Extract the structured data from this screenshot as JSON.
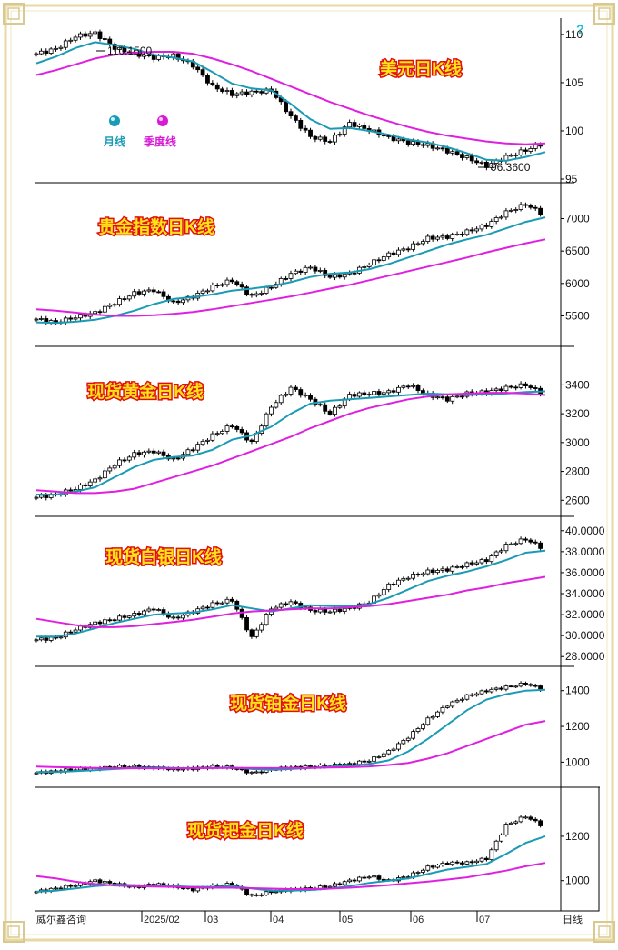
{
  "colors": {
    "candle": "#000000",
    "ma_month": "#1a9bb5",
    "ma_quarter": "#e020e0",
    "title_fill": "#ffe21a",
    "title_stroke": "#e01010",
    "border": "#e8d9a0",
    "legend_month": "#1a9bb5",
    "legend_quarter": "#d81ad8",
    "help": "#19c4d8"
  },
  "legend": {
    "month": "月线",
    "quarter": "季度线",
    "help": "?"
  },
  "footer": {
    "source": "威尔鑫咨询",
    "period": "日线",
    "date_labels": [
      "2025/02",
      "03",
      "04",
      "05",
      "06",
      "07"
    ]
  },
  "chart_data": [
    {
      "type": "line",
      "title": "美元日K线",
      "yticks": [
        "110",
        "105",
        "100",
        "95"
      ],
      "ylim": [
        95,
        111.5
      ],
      "annotations": [
        "110.1500",
        "96.3600"
      ],
      "series": [
        {
          "name": "",
          "values": [
            108.0,
            108.5,
            109.8,
            110.15,
            108.6,
            108.0,
            107.6,
            107.8,
            106.8,
            104.6,
            103.8,
            104.0,
            104.2,
            101.5,
            99.4,
            98.9,
            100.8,
            100.1,
            99.3,
            98.8,
            98.5,
            97.9,
            97.2,
            96.36,
            97.3,
            98.0,
            98.8
          ]
        },
        {
          "name": "月线",
          "values": [
            107.0,
            107.7,
            108.6,
            109.2,
            108.9,
            108.5,
            107.9,
            107.6,
            107.2,
            106.1,
            104.9,
            104.4,
            104.2,
            102.8,
            101.2,
            100.2,
            100.3,
            100.0,
            99.6,
            99.1,
            98.8,
            98.3,
            97.7,
            97.0,
            96.9,
            97.3,
            97.8
          ]
        },
        {
          "name": "季度线",
          "values": [
            105.8,
            106.3,
            106.9,
            107.5,
            107.9,
            108.1,
            108.2,
            108.2,
            108.0,
            107.5,
            106.9,
            106.2,
            105.4,
            104.6,
            103.8,
            103.0,
            102.3,
            101.6,
            101.0,
            100.4,
            99.9,
            99.5,
            99.2,
            98.9,
            98.7,
            98.6,
            98.7
          ]
        }
      ]
    },
    {
      "type": "line",
      "title": "贵金指数日K线",
      "yticks": [
        "7000",
        "6500",
        "6000",
        "5500"
      ],
      "ylim": [
        5100,
        7400
      ],
      "series": [
        {
          "name": "",
          "values": [
            5450,
            5400,
            5480,
            5550,
            5700,
            5850,
            5900,
            5700,
            5800,
            5950,
            6050,
            5800,
            5950,
            6150,
            6250,
            6100,
            6150,
            6300,
            6450,
            6550,
            6700,
            6720,
            6800,
            6900,
            7100,
            7220,
            7050
          ]
        },
        {
          "name": "月线",
          "values": [
            5400,
            5390,
            5410,
            5440,
            5500,
            5580,
            5680,
            5760,
            5790,
            5830,
            5890,
            5920,
            5960,
            6020,
            6100,
            6150,
            6170,
            6220,
            6300,
            6400,
            6500,
            6600,
            6680,
            6750,
            6850,
            6950,
            7020
          ]
        },
        {
          "name": "季度线",
          "values": [
            5600,
            5580,
            5550,
            5520,
            5500,
            5500,
            5510,
            5530,
            5560,
            5600,
            5650,
            5700,
            5750,
            5800,
            5860,
            5920,
            5980,
            6050,
            6120,
            6190,
            6260,
            6330,
            6400,
            6480,
            6550,
            6620,
            6680
          ]
        }
      ]
    },
    {
      "type": "line",
      "title": "现货黄金日K线",
      "yticks": [
        "3400",
        "3200",
        "3000",
        "2800",
        "2600"
      ],
      "ylim": [
        2520,
        3560
      ],
      "series": [
        {
          "name": "",
          "values": [
            2620,
            2640,
            2680,
            2740,
            2850,
            2920,
            2940,
            2880,
            2960,
            3050,
            3120,
            3000,
            3250,
            3380,
            3300,
            3200,
            3330,
            3340,
            3350,
            3400,
            3330,
            3300,
            3340,
            3350,
            3380,
            3400,
            3330
          ]
        },
        {
          "name": "月线",
          "values": [
            2640,
            2640,
            2660,
            2690,
            2760,
            2830,
            2880,
            2900,
            2910,
            2950,
            3020,
            3050,
            3110,
            3200,
            3270,
            3290,
            3300,
            3310,
            3320,
            3330,
            3340,
            3335,
            3330,
            3335,
            3340,
            3350,
            3355
          ]
        },
        {
          "name": "季度线",
          "values": [
            2670,
            2660,
            2650,
            2650,
            2660,
            2680,
            2720,
            2760,
            2800,
            2840,
            2890,
            2940,
            2990,
            3040,
            3100,
            3150,
            3200,
            3240,
            3270,
            3300,
            3320,
            3335,
            3340,
            3345,
            3345,
            3340,
            3330
          ]
        }
      ]
    },
    {
      "type": "line",
      "title": "现货白银日K线",
      "yticks": [
        "40.0000",
        "38.0000",
        "36.0000",
        "34.0000",
        "32.0000",
        "30.0000",
        "28.0000"
      ],
      "ylim": [
        27.5,
        40.5
      ],
      "series": [
        {
          "name": "",
          "values": [
            29.6,
            29.8,
            30.6,
            31.2,
            31.6,
            32.0,
            32.6,
            31.6,
            32.3,
            33.0,
            33.4,
            29.8,
            32.6,
            33.2,
            32.4,
            32.3,
            32.6,
            33.2,
            34.8,
            35.6,
            36.1,
            36.3,
            36.8,
            37.2,
            38.6,
            39.2,
            38.2
          ]
        },
        {
          "name": "月线",
          "values": [
            29.9,
            29.9,
            30.2,
            30.7,
            31.2,
            31.6,
            32.0,
            32.1,
            32.2,
            32.5,
            32.9,
            32.6,
            32.3,
            32.6,
            32.9,
            32.8,
            32.8,
            33.0,
            33.6,
            34.4,
            35.2,
            35.7,
            36.1,
            36.6,
            37.2,
            37.9,
            38.1
          ]
        },
        {
          "name": "季度线",
          "values": [
            31.6,
            31.3,
            31.0,
            30.8,
            30.8,
            30.9,
            31.1,
            31.3,
            31.5,
            31.8,
            32.1,
            32.3,
            32.4,
            32.5,
            32.6,
            32.6,
            32.7,
            32.8,
            33.0,
            33.3,
            33.6,
            33.9,
            34.3,
            34.6,
            35.0,
            35.3,
            35.6
          ]
        }
      ]
    },
    {
      "type": "line",
      "title": "现货铂金日K线",
      "yticks": [
        "1400",
        "1200",
        "1000"
      ],
      "ylim": [
        880,
        1490
      ],
      "series": [
        {
          "name": "",
          "values": [
            940,
            950,
            960,
            965,
            975,
            975,
            970,
            960,
            965,
            975,
            970,
            940,
            960,
            970,
            975,
            980,
            990,
            1010,
            1060,
            1140,
            1240,
            1320,
            1370,
            1400,
            1420,
            1440,
            1400
          ]
        },
        {
          "name": "月线",
          "values": [
            945,
            945,
            950,
            955,
            962,
            968,
            970,
            968,
            966,
            968,
            970,
            962,
            958,
            962,
            968,
            974,
            980,
            990,
            1010,
            1060,
            1130,
            1210,
            1290,
            1350,
            1380,
            1400,
            1405
          ]
        },
        {
          "name": "季度线",
          "values": [
            975,
            972,
            970,
            968,
            966,
            966,
            966,
            966,
            966,
            967,
            968,
            968,
            967,
            967,
            968,
            970,
            972,
            976,
            984,
            996,
            1020,
            1050,
            1090,
            1130,
            1170,
            1210,
            1230
          ]
        }
      ]
    },
    {
      "type": "line",
      "title": "现货钯金日K线",
      "yticks": [
        "1200",
        "1000"
      ],
      "ylim": [
        880,
        1380
      ],
      "series": [
        {
          "name": "",
          "values": [
            950,
            965,
            980,
            1000,
            985,
            970,
            985,
            975,
            960,
            975,
            985,
            930,
            950,
            960,
            965,
            975,
            1000,
            1020,
            1000,
            1020,
            1060,
            1080,
            1080,
            1100,
            1250,
            1290,
            1240
          ]
        },
        {
          "name": "月线",
          "values": [
            950,
            955,
            965,
            975,
            982,
            980,
            976,
            975,
            972,
            972,
            975,
            965,
            955,
            955,
            958,
            964,
            975,
            990,
            1000,
            1010,
            1030,
            1050,
            1062,
            1075,
            1120,
            1170,
            1200
          ]
        },
        {
          "name": "季度线",
          "values": [
            1020,
            1010,
            995,
            985,
            978,
            975,
            973,
            972,
            970,
            968,
            968,
            966,
            964,
            962,
            962,
            964,
            968,
            974,
            980,
            988,
            996,
            1005,
            1015,
            1030,
            1045,
            1065,
            1080
          ]
        }
      ]
    }
  ]
}
